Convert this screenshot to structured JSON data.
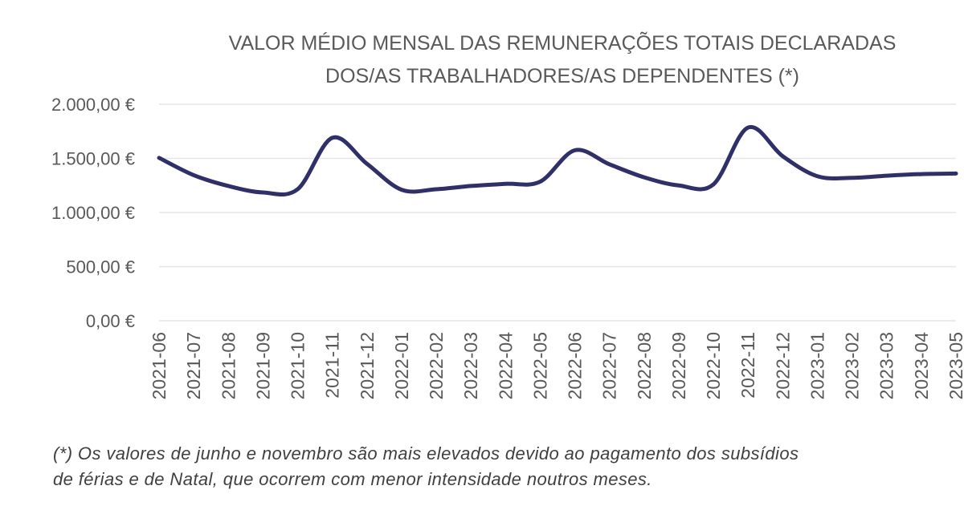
{
  "chart_data": {
    "type": "line",
    "title": [
      "VALOR MÉDIO MENSAL DAS REMUNERAÇÕES TOTAIS DECLARADAS",
      "DOS/AS TRABALHADORES/AS DEPENDENTES (*)"
    ],
    "categories": [
      "2021-06",
      "2021-07",
      "2021-08",
      "2021-09",
      "2021-10",
      "2021-11",
      "2021-12",
      "2022-01",
      "2022-02",
      "2022-03",
      "2022-04",
      "2022-05",
      "2022-06",
      "2022-07",
      "2022-08",
      "2022-09",
      "2022-10",
      "2022-11",
      "2022-12",
      "2023-01",
      "2023-02",
      "2023-03",
      "2023-04",
      "2023-05"
    ],
    "series": [
      {
        "color": "#2e2f6b",
        "values": [
          1505,
          1345,
          1245,
          1185,
          1215,
          1690,
          1450,
          1210,
          1215,
          1245,
          1265,
          1285,
          1575,
          1445,
          1325,
          1250,
          1260,
          1785,
          1520,
          1335,
          1320,
          1340,
          1355,
          1360
        ]
      }
    ],
    "yticks": [
      "2.000,00 €",
      "1.500,00 €",
      "1.000,00 €",
      "500,00 €",
      "0,00 €"
    ],
    "ylim": [
      0,
      2000
    ],
    "xlabel": "",
    "ylabel": "",
    "grid": true,
    "legend": "none"
  },
  "footnote": {
    "line1": "(*) Os valores de junho e novembro são mais elevados devido ao pagamento dos subsídios",
    "line2": "de férias e de Natal, que ocorrem com menor intensidade noutros meses."
  }
}
